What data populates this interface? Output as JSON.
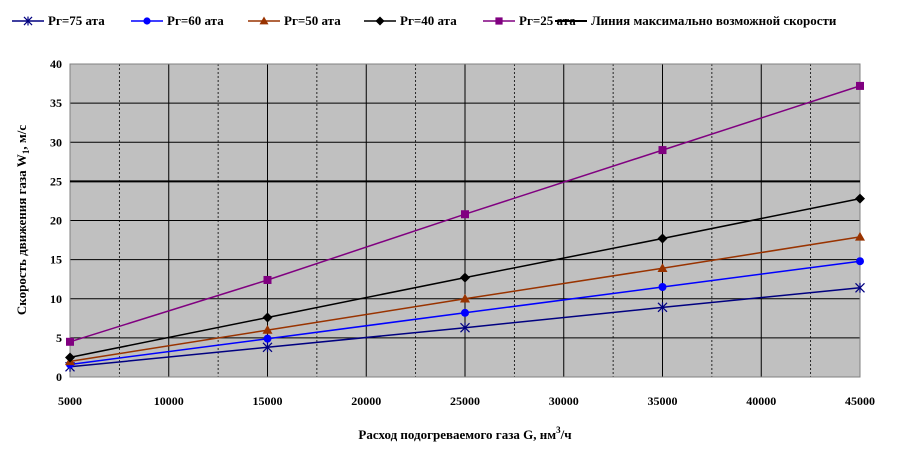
{
  "chart_data": {
    "type": "line",
    "title": "",
    "xlabel": "Расход подогреваемого газа G, нм",
    "xlabel_sup": "3",
    "xlabel_suffix": "/ч",
    "ylabel": "Скорость движения газа W",
    "ylabel_sub": "1",
    "ylabel_suffix": ", м/с",
    "xlim": [
      5000,
      45000
    ],
    "ylim": [
      0,
      40
    ],
    "x_ticks": [
      5000,
      10000,
      15000,
      20000,
      25000,
      30000,
      35000,
      40000,
      45000
    ],
    "y_ticks": [
      0,
      5,
      10,
      15,
      20,
      25,
      30,
      35,
      40
    ],
    "x_minor_step": 2500,
    "grid": true,
    "plot_background": "#c0c0c0",
    "legend_position": "top",
    "x": [
      5000,
      15000,
      25000,
      35000,
      45000
    ],
    "series": [
      {
        "name": "Pг=75 ата",
        "color": "#000080",
        "marker": "asterisk",
        "values": [
          1.3,
          3.8,
          6.3,
          8.9,
          11.4
        ]
      },
      {
        "name": "Pг=60 ата",
        "color": "#0000ff",
        "marker": "circle",
        "values": [
          1.6,
          4.9,
          8.2,
          11.5,
          14.8
        ]
      },
      {
        "name": "Pг=50 ата",
        "color": "#993300",
        "marker": "triangle",
        "values": [
          2.0,
          6.0,
          10.0,
          13.9,
          17.9
        ]
      },
      {
        "name": "Pг=40 ата",
        "color": "#000000",
        "marker": "diamond",
        "values": [
          2.5,
          7.6,
          12.7,
          17.7,
          22.8
        ]
      },
      {
        "name": "Pг=25 ата",
        "color": "#800080",
        "marker": "square",
        "values": [
          4.5,
          12.4,
          20.8,
          29.0,
          37.2
        ]
      }
    ],
    "reference_line": {
      "name": "Линия максимально возможной скорости",
      "color": "#000000",
      "value": 25
    }
  }
}
